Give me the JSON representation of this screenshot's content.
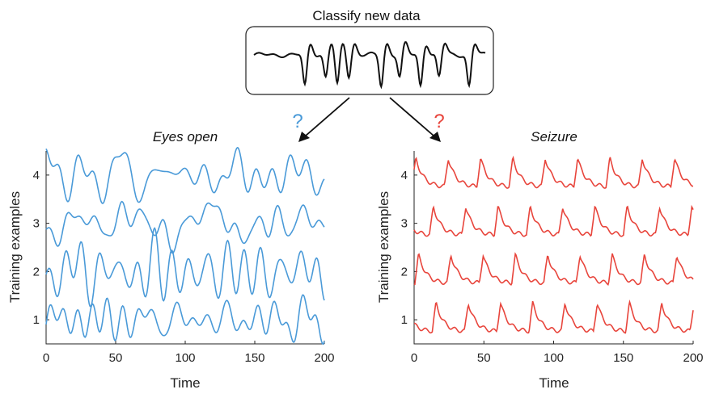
{
  "top": {
    "title": "Classify new data"
  },
  "question_marks": {
    "left": "?",
    "right": "?",
    "left_color": "#4a9ad8",
    "right_color": "#e8453c"
  },
  "colors": {
    "new_data": "#111111",
    "eyes_open": "#4a9ad8",
    "seizure": "#e8453c"
  },
  "chart_data": [
    {
      "type": "line",
      "title": "Eyes open",
      "xlabel": "Time",
      "ylabel": "Training examples",
      "xlim": [
        0,
        200
      ],
      "ylim": [
        0.5,
        4.5
      ],
      "xticks": [
        "0",
        "50",
        "100",
        "150",
        "200"
      ],
      "yticks": [
        "1",
        "2",
        "3",
        "4"
      ],
      "series_style": "irregular",
      "baselines": [
        1,
        2,
        3,
        4
      ]
    },
    {
      "type": "line",
      "title": "Seizure",
      "xlabel": "Time",
      "ylabel": "Training examples",
      "xlim": [
        0,
        200
      ],
      "ylim": [
        0.5,
        4.5
      ],
      "xticks": [
        "0",
        "50",
        "100",
        "150",
        "200"
      ],
      "yticks": [
        "1",
        "2",
        "3",
        "4"
      ],
      "series_style": "spiky",
      "baselines": [
        1,
        2,
        3,
        4
      ]
    }
  ]
}
